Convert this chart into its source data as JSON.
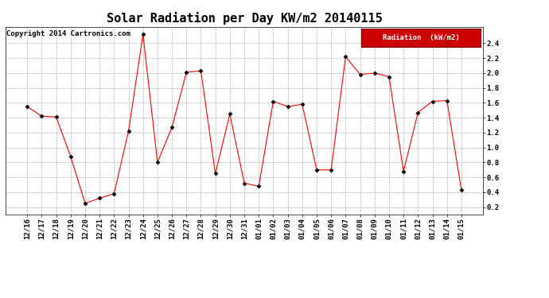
{
  "title": "Solar Radiation per Day KW/m2 20140115",
  "copyright": "Copyright 2014 Cartronics.com",
  "legend_label": "Radiation  (kW/m2)",
  "x_labels": [
    "12/16",
    "12/17",
    "12/18",
    "12/19",
    "12/20",
    "12/21",
    "12/22",
    "12/23",
    "12/24",
    "12/25",
    "12/26",
    "12/27",
    "12/28",
    "12/29",
    "12/30",
    "12/31",
    "01/01",
    "01/02",
    "01/03",
    "01/04",
    "01/05",
    "01/06",
    "01/07",
    "01/08",
    "01/09",
    "01/10",
    "01/11",
    "01/12",
    "01/13",
    "01/14",
    "01/15"
  ],
  "y_values": [
    1.55,
    1.42,
    1.41,
    0.88,
    0.25,
    0.32,
    0.38,
    1.22,
    2.52,
    0.8,
    1.27,
    2.01,
    2.03,
    0.65,
    1.45,
    0.52,
    0.48,
    1.62,
    1.55,
    1.58,
    0.7,
    0.7,
    2.22,
    1.98,
    2.0,
    1.95,
    0.68,
    1.47,
    1.62,
    1.63,
    0.43
  ],
  "line_color": "#ff0000",
  "marker_color": "#000000",
  "background_color": "#ffffff",
  "plot_bg_color": "#ffffff",
  "grid_color": "#b0b0b0",
  "ylim": [
    0.1,
    2.62
  ],
  "yticks": [
    0.2,
    0.4,
    0.6,
    0.8,
    1.0,
    1.2,
    1.4,
    1.6,
    1.8,
    2.0,
    2.2,
    2.4
  ],
  "legend_bg": "#cc0000",
  "legend_text_color": "#ffffff",
  "title_fontsize": 11,
  "tick_fontsize": 6.5,
  "copyright_fontsize": 6.5,
  "legend_fontsize": 6.5
}
